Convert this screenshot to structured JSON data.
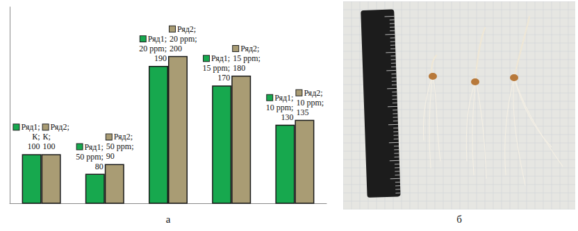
{
  "chart_data": {
    "type": "bar",
    "categories": [
      "К",
      "50 ppm",
      "20 ppm",
      "15 ppm",
      "10 ppm"
    ],
    "series": [
      {
        "name": "Ряд1",
        "color": "#17a84e",
        "values": [
          100,
          80,
          190,
          170,
          130
        ],
        "value_labels": [
          "Ряд1; К; 100",
          "Ряд1; 50 ppm; 80",
          "Ряд1; 20 ppm; 190",
          "Ряд1; 15 ppm; 170",
          "Ряд1; 10 ppm; 130"
        ]
      },
      {
        "name": "Ряд2",
        "color": "#a99c74",
        "values": [
          100,
          90,
          200,
          180,
          135
        ],
        "value_labels": [
          "Ряд2; К; 100",
          "Ряд2; 50 ppm; 90",
          "Ряд2; 20 ppm; 200",
          "Ряд2; 15 ppm; 180",
          "Ряд2; 10 ppm; 135"
        ]
      }
    ],
    "ylim": [
      50,
      250
    ],
    "grid": false,
    "data_labels": true,
    "tick_labels": false,
    "annotations": [
      "а"
    ]
  },
  "photo": {
    "label": "б"
  }
}
